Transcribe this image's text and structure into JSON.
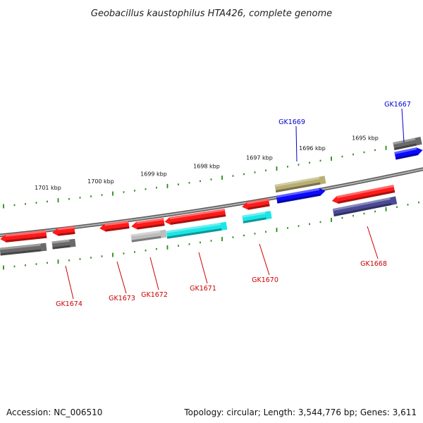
{
  "title": "Geobacillus kaustophilus HTA426, complete genome",
  "footer": {
    "accession": "Accession: NC_006510",
    "topology": "Topology: circular; Length: 3,544,776 bp; Genes: 3,611"
  },
  "colors": {
    "backbone": "#8c8c8c",
    "tick": "#2a8a1a",
    "label_forward": "#0000cc",
    "label_reverse": "#cc0000",
    "red": "#ff1a1a",
    "gray_dark": "#6a6a6a",
    "gray_light": "#bdbdbd",
    "cyan": "#19e6e6",
    "olive": "#b8ae72",
    "blue": "#0a0aff",
    "navy": "#4a4a96"
  },
  "ticks": [
    "1701 kbp",
    "1700 kbp",
    "1699 kbp",
    "1698 kbp",
    "1697 kbp",
    "1696 kbp",
    "1695 kbp"
  ],
  "genes": [
    {
      "name": "GK1667",
      "strand": "forward"
    },
    {
      "name": "GK1669",
      "strand": "forward"
    },
    {
      "name": "GK1668",
      "strand": "reverse"
    },
    {
      "name": "GK1670",
      "strand": "reverse"
    },
    {
      "name": "GK1671",
      "strand": "reverse"
    },
    {
      "name": "GK1672",
      "strand": "reverse"
    },
    {
      "name": "GK1673",
      "strand": "reverse"
    },
    {
      "name": "GK1674",
      "strand": "reverse"
    }
  ]
}
